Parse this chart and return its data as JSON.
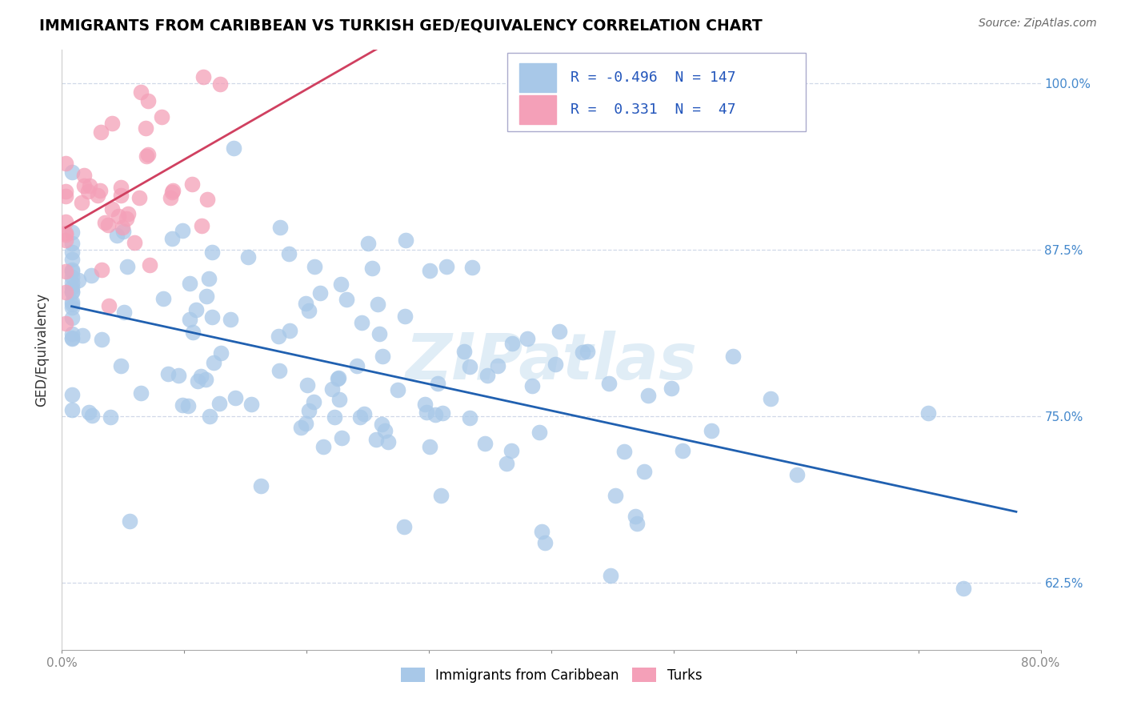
{
  "title": "IMMIGRANTS FROM CARIBBEAN VS TURKISH GED/EQUIVALENCY CORRELATION CHART",
  "source": "Source: ZipAtlas.com",
  "ylabel": "GED/Equivalency",
  "xlim": [
    0.0,
    0.8
  ],
  "ylim": [
    0.575,
    1.025
  ],
  "ytick_positions": [
    0.625,
    0.75,
    0.875,
    1.0
  ],
  "yticklabels": [
    "62.5%",
    "75.0%",
    "87.5%",
    "100.0%"
  ],
  "caribbean_R": -0.496,
  "caribbean_N": 147,
  "turks_R": 0.331,
  "turks_N": 47,
  "caribbean_color": "#a8c8e8",
  "turks_color": "#f4a0b8",
  "caribbean_line_color": "#2060b0",
  "turks_line_color": "#d04060",
  "legend_label_caribbean": "Immigrants from Caribbean",
  "legend_label_turks": "Turks",
  "watermark": "ZIPatlas",
  "background_color": "#ffffff",
  "grid_color": "#d0d8e8"
}
